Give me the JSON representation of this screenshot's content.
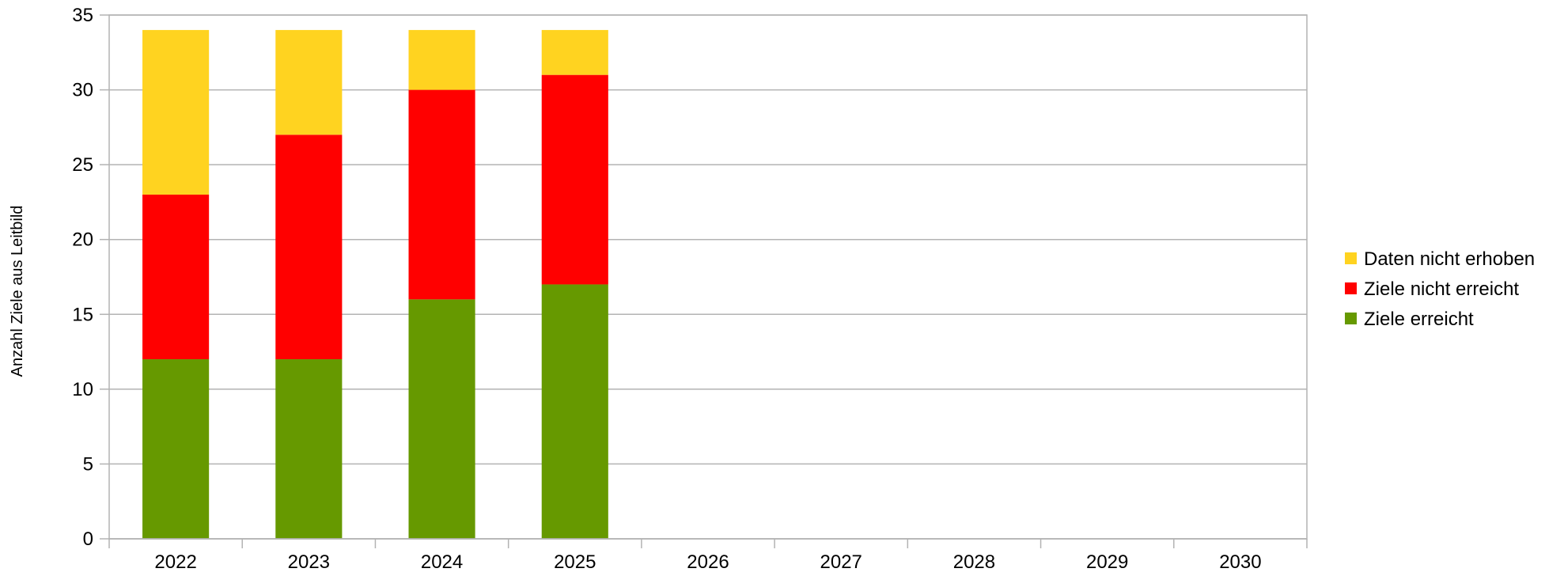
{
  "chart_data": {
    "type": "bar",
    "stacked": true,
    "title": "",
    "xlabel": "",
    "ylabel": "Anzahl Ziele aus Leitbild",
    "categories": [
      "2022",
      "2023",
      "2024",
      "2025",
      "2026",
      "2027",
      "2028",
      "2029",
      "2030"
    ],
    "yticks": [
      "0",
      "5",
      "10",
      "15",
      "20",
      "25",
      "30",
      "35"
    ],
    "ylim": [
      0,
      35
    ],
    "grid": true,
    "legend_position": "right",
    "series": [
      {
        "name": "Ziele erreicht",
        "color": "#669900",
        "values": [
          12,
          12,
          16,
          17,
          null,
          null,
          null,
          null,
          null
        ]
      },
      {
        "name": "Ziele nicht erreicht",
        "color": "#ff0000",
        "values": [
          11,
          15,
          14,
          14,
          null,
          null,
          null,
          null,
          null
        ]
      },
      {
        "name": "Daten nicht erhoben",
        "color": "#ffd320",
        "values": [
          11,
          7,
          4,
          3,
          null,
          null,
          null,
          null,
          null
        ]
      }
    ],
    "legend_order": [
      "Daten nicht erhoben",
      "Ziele nicht erreicht",
      "Ziele erreicht"
    ]
  }
}
